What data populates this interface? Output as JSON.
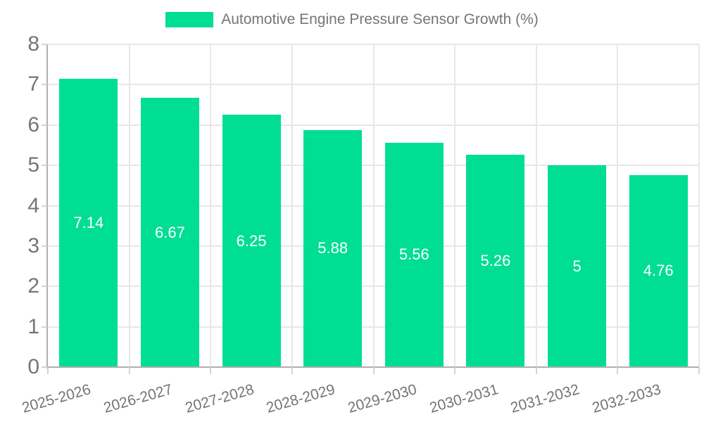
{
  "chart_data": {
    "type": "bar",
    "title": "Automotive Engine Pressure Sensor Growth (%)",
    "categories": [
      "2025-2026",
      "2026-2027",
      "2027-2028",
      "2028-2029",
      "2029-2030",
      "2030-2031",
      "2031-2032",
      "2032-2033"
    ],
    "values": [
      7.14,
      6.67,
      6.25,
      5.88,
      5.56,
      5.26,
      5,
      4.76
    ],
    "value_labels": [
      "7.14",
      "6.67",
      "6.25",
      "5.88",
      "5.56",
      "5.26",
      "5",
      "4.76"
    ],
    "xlabel": "",
    "ylabel": "",
    "ylim": [
      0,
      8
    ],
    "yticks": [
      0,
      1,
      2,
      3,
      4,
      5,
      6,
      7,
      8
    ],
    "grid": true,
    "legend_position": "top",
    "bar_color": "#00de94",
    "bar_label_color": "#ffffff",
    "grid_color": "#e7e7e7",
    "axis_color": "#afafaf",
    "tick_color": "#d4d4d4",
    "text_color": "#757575"
  }
}
